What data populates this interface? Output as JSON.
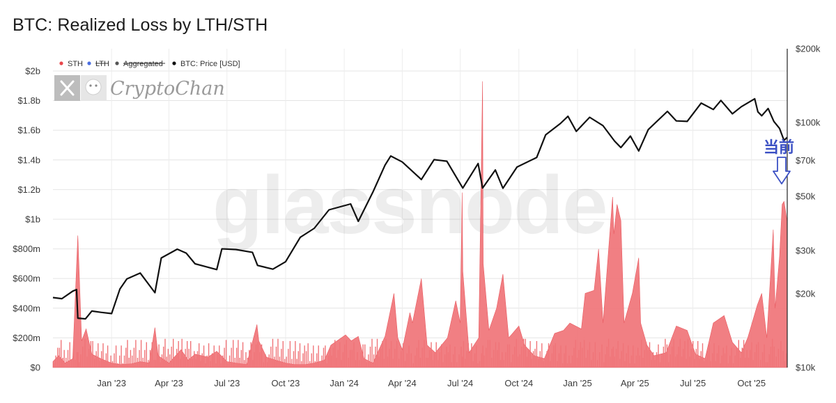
{
  "title": "BTC: Realized Loss by LTH/STH",
  "chart_data": {
    "type": "area",
    "title": "BTC: Realized Loss by LTH/STH",
    "left_axis": {
      "ticks": [
        {
          "value": 0,
          "label": "$0"
        },
        {
          "value": 200,
          "label": "$200m"
        },
        {
          "value": 400,
          "label": "$400m"
        },
        {
          "value": 600,
          "label": "$600m"
        },
        {
          "value": 800,
          "label": "$800m"
        },
        {
          "value": 1000,
          "label": "$1b"
        },
        {
          "value": 1200,
          "label": "$1.2b"
        },
        {
          "value": 1400,
          "label": "$1.4b"
        },
        {
          "value": 1600,
          "label": "$1.6b"
        },
        {
          "value": 1800,
          "label": "$1.8b"
        },
        {
          "value": 2000,
          "label": "$2b"
        }
      ],
      "range": [
        0,
        2150
      ],
      "unit": "USD millions"
    },
    "right_axis": {
      "scale": "log",
      "ticks": [
        {
          "value": 10000,
          "label": "$10k"
        },
        {
          "value": 20000,
          "label": "$20k"
        },
        {
          "value": 30000,
          "label": "$30k"
        },
        {
          "value": 50000,
          "label": "$50k"
        },
        {
          "value": 70000,
          "label": "$70k"
        },
        {
          "value": 100000,
          "label": "$100k"
        },
        {
          "value": 200000,
          "label": "$200k"
        }
      ],
      "range": [
        10000,
        200000
      ]
    },
    "x_axis": {
      "range": [
        "2022-10-01",
        "2025-11-26"
      ],
      "ticks": [
        {
          "date": "2023-01-01",
          "label": "Jan '23"
        },
        {
          "date": "2023-04-01",
          "label": "Apr '23"
        },
        {
          "date": "2023-07-01",
          "label": "Jul '23"
        },
        {
          "date": "2023-10-01",
          "label": "Oct '23"
        },
        {
          "date": "2024-01-01",
          "label": "Jan '24"
        },
        {
          "date": "2024-04-01",
          "label": "Apr '24"
        },
        {
          "date": "2024-07-01",
          "label": "Jul '24"
        },
        {
          "date": "2024-10-01",
          "label": "Oct '24"
        },
        {
          "date": "2025-01-01",
          "label": "Jan '25"
        },
        {
          "date": "2025-04-01",
          "label": "Apr '25"
        },
        {
          "date": "2025-07-01",
          "label": "Jul '25"
        },
        {
          "date": "2025-10-01",
          "label": "Oct '25"
        }
      ]
    },
    "legend": {
      "placement": "top-left",
      "items": [
        {
          "label": "STH",
          "color": "#e8474b",
          "active": true
        },
        {
          "label": "LTH",
          "color": "#4a6ee0",
          "active": false
        },
        {
          "label": "Aggregated",
          "color": "#555555",
          "active": false
        },
        {
          "label": "BTC: Price [USD]",
          "color": "#111111",
          "active": true
        }
      ]
    },
    "grid": true,
    "series": [
      {
        "name": "STH",
        "axis": "left",
        "type": "area",
        "color": "#f07478",
        "points": [
          [
            "2022-10-01",
            40
          ],
          [
            "2022-10-10",
            80
          ],
          [
            "2022-10-20",
            30
          ],
          [
            "2022-11-01",
            60
          ],
          [
            "2022-11-09",
            890
          ],
          [
            "2022-11-10",
            780
          ],
          [
            "2022-11-15",
            180
          ],
          [
            "2022-11-22",
            260
          ],
          [
            "2022-12-01",
            90
          ],
          [
            "2022-12-15",
            60
          ],
          [
            "2023-01-01",
            30
          ],
          [
            "2023-01-15",
            20
          ],
          [
            "2023-02-01",
            25
          ],
          [
            "2023-02-15",
            40
          ],
          [
            "2023-03-01",
            30
          ],
          [
            "2023-03-10",
            270
          ],
          [
            "2023-03-15",
            80
          ],
          [
            "2023-04-01",
            30
          ],
          [
            "2023-04-20",
            120
          ],
          [
            "2023-05-01",
            50
          ],
          [
            "2023-05-12",
            90
          ],
          [
            "2023-06-01",
            70
          ],
          [
            "2023-06-15",
            110
          ],
          [
            "2023-07-01",
            40
          ],
          [
            "2023-07-15",
            30
          ],
          [
            "2023-08-01",
            20
          ],
          [
            "2023-08-17",
            290
          ],
          [
            "2023-08-20",
            180
          ],
          [
            "2023-09-01",
            70
          ],
          [
            "2023-09-15",
            50
          ],
          [
            "2023-10-01",
            30
          ],
          [
            "2023-10-15",
            20
          ],
          [
            "2023-11-01",
            20
          ],
          [
            "2023-11-15",
            30
          ],
          [
            "2023-12-01",
            50
          ],
          [
            "2023-12-11",
            150
          ],
          [
            "2024-01-03",
            220
          ],
          [
            "2024-01-12",
            180
          ],
          [
            "2024-01-23",
            210
          ],
          [
            "2024-02-01",
            60
          ],
          [
            "2024-02-15",
            30
          ],
          [
            "2024-03-05",
            210
          ],
          [
            "2024-03-19",
            500
          ],
          [
            "2024-03-25",
            200
          ],
          [
            "2024-04-01",
            120
          ],
          [
            "2024-04-13",
            370
          ],
          [
            "2024-04-17",
            300
          ],
          [
            "2024-05-01",
            600
          ],
          [
            "2024-05-10",
            150
          ],
          [
            "2024-05-23",
            100
          ],
          [
            "2024-06-11",
            200
          ],
          [
            "2024-06-24",
            450
          ],
          [
            "2024-07-01",
            300
          ],
          [
            "2024-07-04",
            1180
          ],
          [
            "2024-07-05",
            650
          ],
          [
            "2024-07-15",
            100
          ],
          [
            "2024-07-30",
            200
          ],
          [
            "2024-08-05",
            1930
          ],
          [
            "2024-08-06",
            700
          ],
          [
            "2024-08-15",
            250
          ],
          [
            "2024-08-27",
            400
          ],
          [
            "2024-09-06",
            630
          ],
          [
            "2024-09-15",
            200
          ],
          [
            "2024-10-01",
            280
          ],
          [
            "2024-10-10",
            150
          ],
          [
            "2024-10-25",
            80
          ],
          [
            "2024-11-10",
            60
          ],
          [
            "2024-11-26",
            230
          ],
          [
            "2024-12-10",
            250
          ],
          [
            "2024-12-20",
            300
          ],
          [
            "2025-01-07",
            260
          ],
          [
            "2025-01-13",
            500
          ],
          [
            "2025-01-27",
            520
          ],
          [
            "2025-02-03",
            800
          ],
          [
            "2025-02-10",
            300
          ],
          [
            "2025-02-25",
            1150
          ],
          [
            "2025-02-27",
            900
          ],
          [
            "2025-03-04",
            1100
          ],
          [
            "2025-03-10",
            990
          ],
          [
            "2025-03-15",
            300
          ],
          [
            "2025-03-28",
            500
          ],
          [
            "2025-04-07",
            740
          ],
          [
            "2025-04-10",
            300
          ],
          [
            "2025-04-20",
            150
          ],
          [
            "2025-05-01",
            80
          ],
          [
            "2025-05-20",
            100
          ],
          [
            "2025-06-05",
            280
          ],
          [
            "2025-06-22",
            250
          ],
          [
            "2025-07-05",
            90
          ],
          [
            "2025-07-20",
            60
          ],
          [
            "2025-08-02",
            300
          ],
          [
            "2025-08-19",
            350
          ],
          [
            "2025-09-01",
            170
          ],
          [
            "2025-09-15",
            100
          ],
          [
            "2025-09-25",
            200
          ],
          [
            "2025-10-10",
            420
          ],
          [
            "2025-10-17",
            500
          ],
          [
            "2025-10-25",
            200
          ],
          [
            "2025-11-04",
            930
          ],
          [
            "2025-11-07",
            400
          ],
          [
            "2025-11-14",
            750
          ],
          [
            "2025-11-18",
            1100
          ],
          [
            "2025-11-21",
            1120
          ],
          [
            "2025-11-26",
            980
          ]
        ]
      },
      {
        "name": "BTC: Price [USD]",
        "axis": "right",
        "type": "line",
        "color": "#111111",
        "points": [
          [
            "2022-10-01",
            19300
          ],
          [
            "2022-10-15",
            19100
          ],
          [
            "2022-11-01",
            20500
          ],
          [
            "2022-11-07",
            20800
          ],
          [
            "2022-11-09",
            15900
          ],
          [
            "2022-11-21",
            15800
          ],
          [
            "2022-12-01",
            17000
          ],
          [
            "2022-12-15",
            16800
          ],
          [
            "2023-01-01",
            16600
          ],
          [
            "2023-01-14",
            20900
          ],
          [
            "2023-01-25",
            23000
          ],
          [
            "2023-02-15",
            24300
          ],
          [
            "2023-03-10",
            20200
          ],
          [
            "2023-03-20",
            28000
          ],
          [
            "2023-04-14",
            30400
          ],
          [
            "2023-04-28",
            29300
          ],
          [
            "2023-05-12",
            26500
          ],
          [
            "2023-06-15",
            25100
          ],
          [
            "2023-06-23",
            30500
          ],
          [
            "2023-07-15",
            30300
          ],
          [
            "2023-08-10",
            29500
          ],
          [
            "2023-08-18",
            26100
          ],
          [
            "2023-09-11",
            25200
          ],
          [
            "2023-10-01",
            27000
          ],
          [
            "2023-10-24",
            34000
          ],
          [
            "2023-11-15",
            37000
          ],
          [
            "2023-12-08",
            44000
          ],
          [
            "2024-01-11",
            46500
          ],
          [
            "2024-01-23",
            39500
          ],
          [
            "2024-02-15",
            52000
          ],
          [
            "2024-03-05",
            67000
          ],
          [
            "2024-03-14",
            73000
          ],
          [
            "2024-04-01",
            69000
          ],
          [
            "2024-05-01",
            58500
          ],
          [
            "2024-05-21",
            70500
          ],
          [
            "2024-06-10",
            69500
          ],
          [
            "2024-07-05",
            54000
          ],
          [
            "2024-07-29",
            68000
          ],
          [
            "2024-08-05",
            54000
          ],
          [
            "2024-08-25",
            64000
          ],
          [
            "2024-09-06",
            53900
          ],
          [
            "2024-09-28",
            65800
          ],
          [
            "2024-10-29",
            72000
          ],
          [
            "2024-11-12",
            89000
          ],
          [
            "2024-12-05",
            99000
          ],
          [
            "2024-12-17",
            106000
          ],
          [
            "2024-12-30",
            92000
          ],
          [
            "2025-01-20",
            105000
          ],
          [
            "2025-02-10",
            97000
          ],
          [
            "2025-02-28",
            84000
          ],
          [
            "2025-03-10",
            79000
          ],
          [
            "2025-03-25",
            88000
          ],
          [
            "2025-04-07",
            76500
          ],
          [
            "2025-04-22",
            93500
          ],
          [
            "2025-05-22",
            111000
          ],
          [
            "2025-06-05",
            101500
          ],
          [
            "2025-06-22",
            101000
          ],
          [
            "2025-07-14",
            120000
          ],
          [
            "2025-08-02",
            113000
          ],
          [
            "2025-08-14",
            123000
          ],
          [
            "2025-09-01",
            108500
          ],
          [
            "2025-09-15",
            116000
          ],
          [
            "2025-10-06",
            125000
          ],
          [
            "2025-10-11",
            110500
          ],
          [
            "2025-10-17",
            106500
          ],
          [
            "2025-10-27",
            114000
          ],
          [
            "2025-11-05",
            101000
          ],
          [
            "2025-11-14",
            94500
          ],
          [
            "2025-11-21",
            84500
          ],
          [
            "2025-11-26",
            87000
          ]
        ]
      }
    ],
    "annotations": [
      {
        "text": "当前",
        "date": "2025-11-21",
        "color": "#3b50c4",
        "arrow": "down"
      }
    ]
  },
  "watermark_text": "glassnode",
  "logo": {
    "text": "CryptoChan",
    "x_icon": "x-logo-icon",
    "avatar": "avatar-icon"
  }
}
